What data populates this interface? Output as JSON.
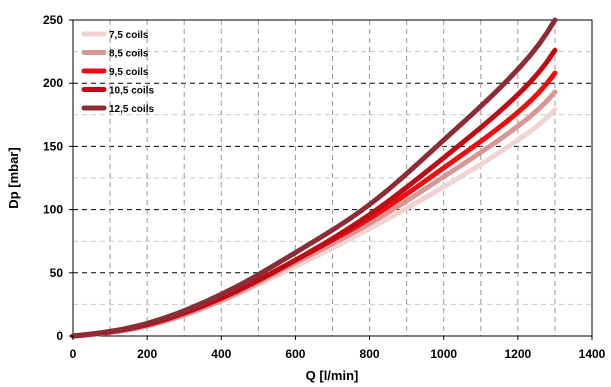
{
  "chart_data": {
    "type": "line",
    "title": "",
    "xlabel": "Q [l/min]",
    "ylabel": "Dp [mbar]",
    "xlim": [
      0,
      1400
    ],
    "ylim": [
      0,
      250
    ],
    "x_ticks": [
      0,
      200,
      400,
      600,
      800,
      1000,
      1200,
      1400
    ],
    "y_ticks": [
      0,
      50,
      100,
      150,
      200,
      250
    ],
    "x_tick_labels": [
      "0",
      "200",
      "400",
      "600",
      "800",
      "1000",
      "1200",
      "1400"
    ],
    "y_tick_labels": [
      "0",
      "50",
      "100",
      "150",
      "200",
      "250"
    ],
    "grid": true,
    "legend_position": "top-left",
    "series": [
      {
        "name": "7,5 coils",
        "color": "#f0d4d4",
        "x": [
          0,
          200,
          400,
          600,
          800,
          1000,
          1200,
          1300
        ],
        "y": [
          0,
          8,
          28,
          55,
          85,
          118,
          155,
          179
        ]
      },
      {
        "name": "8,5 coils",
        "color": "#d89696",
        "x": [
          0,
          200,
          400,
          600,
          800,
          1000,
          1200,
          1300
        ],
        "y": [
          0,
          8,
          28,
          58,
          89,
          126,
          166,
          193
        ]
      },
      {
        "name": "9,5 coils",
        "color": "#ee0e0e",
        "x": [
          0,
          200,
          400,
          600,
          800,
          1000,
          1200,
          1300
        ],
        "y": [
          0,
          9,
          30,
          60,
          93,
          133,
          177,
          208
        ]
      },
      {
        "name": "10,5 coils",
        "color": "#c00a14",
        "x": [
          0,
          200,
          400,
          600,
          800,
          1000,
          1200,
          1300
        ],
        "y": [
          0,
          9,
          30,
          60,
          96,
          141,
          191,
          226
        ]
      },
      {
        "name": "12,5 coils",
        "color": "#8e2c36",
        "x": [
          0,
          200,
          400,
          600,
          800,
          1000,
          1200,
          1300
        ],
        "y": [
          0,
          10,
          33,
          66,
          104,
          155,
          211,
          250
        ]
      }
    ]
  }
}
